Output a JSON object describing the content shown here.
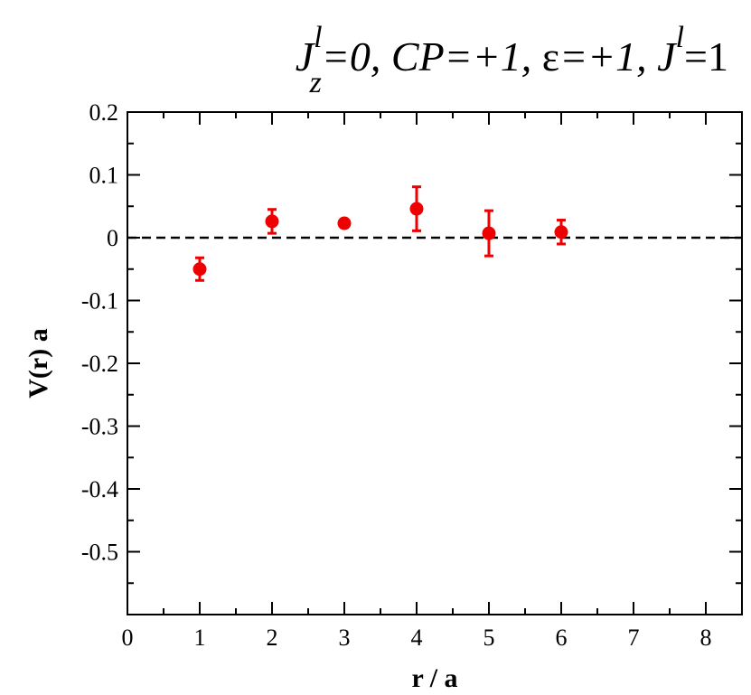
{
  "chart_data": {
    "type": "scatter",
    "title": {
      "parts": [
        "J",
        "l",
        "z",
        "=0,  CP=+1,  ",
        "ε",
        "=+1,  J",
        "l",
        "=1"
      ]
    },
    "xlabel": "r / a",
    "ylabel": "V(r) a",
    "xlim": [
      0,
      8.5
    ],
    "ylim": [
      -0.6,
      0.2
    ],
    "x_ticks": [
      0,
      1,
      2,
      3,
      4,
      5,
      6,
      7,
      8
    ],
    "x_tick_labels": [
      "0",
      "1",
      "2",
      "3",
      "4",
      "5",
      "6",
      "7",
      "8"
    ],
    "y_ticks": [
      0.2,
      0.1,
      0,
      -0.1,
      -0.2,
      -0.3,
      -0.4,
      -0.5
    ],
    "y_tick_labels": [
      "0.2",
      "0.1",
      "0",
      "-0.1",
      "-0.2",
      "-0.3",
      "-0.4",
      "-0.5"
    ],
    "reference_line": {
      "y": 0,
      "style": "dashed",
      "color": "#000000"
    },
    "series": [
      {
        "color": "#ee0000",
        "marker": "circle",
        "x": [
          1,
          2,
          3,
          4,
          5,
          6
        ],
        "y": [
          -0.05,
          0.026,
          0.023,
          0.046,
          0.007,
          0.009
        ],
        "yerr": [
          0.018,
          0.019,
          0.006,
          0.035,
          0.036,
          0.019
        ]
      }
    ],
    "grid": false
  }
}
